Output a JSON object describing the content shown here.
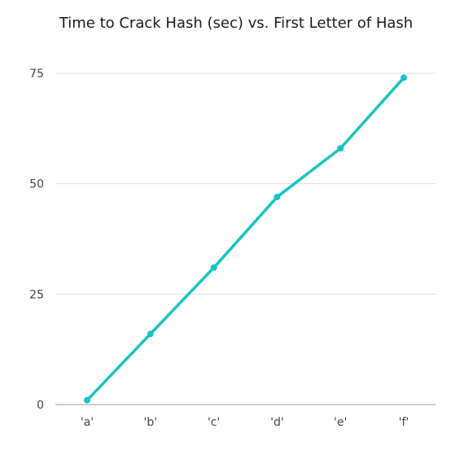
{
  "chart_data": {
    "type": "line",
    "title": "Time to Crack Hash (sec) vs. First Letter of Hash",
    "xlabel": "",
    "ylabel": "",
    "categories": [
      "'a'",
      "'b'",
      "'c'",
      "'d'",
      "'e'",
      "'f'"
    ],
    "series": [
      {
        "values": [
          1,
          16,
          31,
          47,
          58,
          74
        ]
      }
    ],
    "ylim": [
      0,
      75
    ],
    "yticks": [
      0,
      25,
      50,
      75
    ],
    "grid": true,
    "legend": "none",
    "colors": {
      "line": "#17c3c3",
      "grid": "#dddddd",
      "baseline": "#999999"
    }
  }
}
